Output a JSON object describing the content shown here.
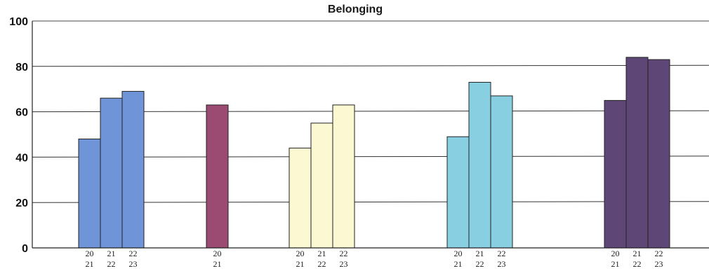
{
  "chart_data": {
    "type": "bar",
    "title": "Belonging",
    "xlabel": "",
    "ylabel": "",
    "ylim": [
      0,
      100
    ],
    "yticks": [
      0,
      20,
      40,
      60,
      80,
      100
    ],
    "grid": true,
    "legend": "none",
    "groups": [
      {
        "color": "#6f94d8",
        "bars": [
          {
            "label_top": "20",
            "label_bottom": "21",
            "value": 48
          },
          {
            "label_top": "21",
            "label_bottom": "22",
            "value": 66
          },
          {
            "label_top": "22",
            "label_bottom": "23",
            "value": 69
          }
        ]
      },
      {
        "color": "#9b4a72",
        "bars": [
          {
            "label_top": "20",
            "label_bottom": "21",
            "value": 63
          }
        ]
      },
      {
        "color": "#fbf8d2",
        "bars": [
          {
            "label_top": "20",
            "label_bottom": "21",
            "value": 44
          },
          {
            "label_top": "21",
            "label_bottom": "22",
            "value": 55
          },
          {
            "label_top": "22",
            "label_bottom": "23",
            "value": 63
          }
        ]
      },
      {
        "color": "#88cfe2",
        "bars": [
          {
            "label_top": "20",
            "label_bottom": "21",
            "value": 49
          },
          {
            "label_top": "21",
            "label_bottom": "22",
            "value": 73
          },
          {
            "label_top": "22",
            "label_bottom": "23",
            "value": 67
          }
        ]
      },
      {
        "color": "#5e4677",
        "bars": [
          {
            "label_top": "20",
            "label_bottom": "21",
            "value": 65
          },
          {
            "label_top": "21",
            "label_bottom": "22",
            "value": 84
          },
          {
            "label_top": "22",
            "label_bottom": "23",
            "value": 83
          }
        ]
      }
    ]
  }
}
